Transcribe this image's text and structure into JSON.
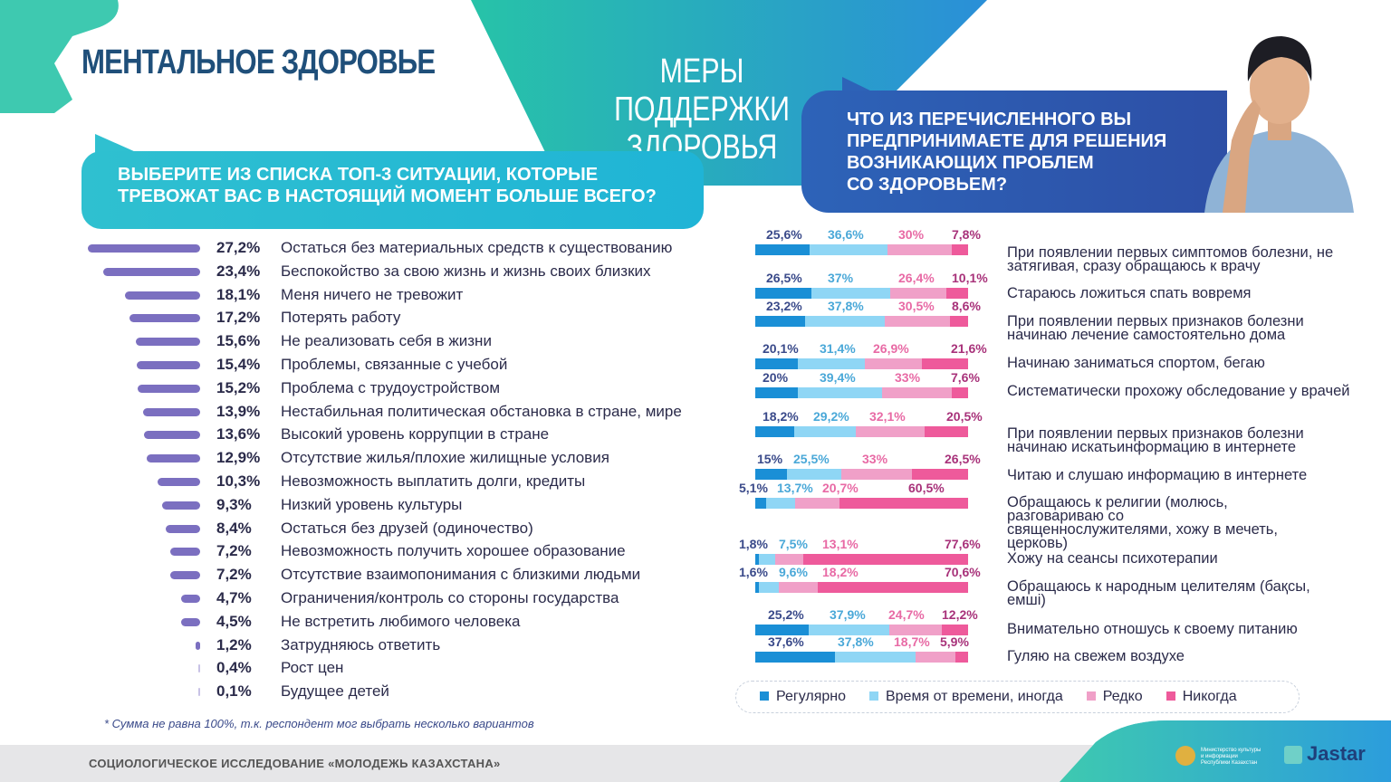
{
  "header": {
    "title": "МЕНТАЛЬНОЕ ЗДОРОВЬЕ",
    "subtitle_line1": "МЕРЫ ПОДДЕРЖКИ",
    "subtitle_line2": "ЗДОРОВЬЯ"
  },
  "colors": {
    "left_bar": "#7b6fc0",
    "regular": "#1a8fd6",
    "sometimes": "#8fd6f5",
    "rarely": "#f0a0c8",
    "never": "#ee5a9b"
  },
  "chart_data": [
    {
      "type": "bar",
      "orientation": "horizontal",
      "title": "ВЫБЕРИТЕ ИЗ СПИСКА ТОП-3 СИТУАЦИИ, КОТОРЫЕ ТРЕВОЖАТ ВАС В НАСТОЯЩИЙ МОМЕНТ БОЛЬШЕ ВСЕГО?",
      "categories": [
        "Остаться без материальных средств к существованию",
        "Беспокойство за свою жизнь и жизнь своих близких",
        "Меня ничего не тревожит",
        "Потерять работу",
        "Не реализовать себя в жизни",
        "Проблемы, связанные с учебой",
        "Проблема с трудоустройством",
        "Нестабильная политическая обстановка в стране, мире",
        "Высокий уровень коррупции в стране",
        "Отсутствие жилья/плохие жилищные условия",
        "Невозможность выплатить долги, кредиты",
        "Низкий уровень культуры",
        "Остаться без друзей (одиночество)",
        "Невозможность получить хорошее образование",
        "Отсутствие взаимопонимания с близкими людьми",
        "Ограничения/контроль со стороны государства",
        "Не встретить любимого человека",
        "Затрудняюсь ответить",
        "Рост цен",
        "Будущее детей"
      ],
      "values": [
        27.2,
        23.4,
        18.1,
        17.2,
        15.6,
        15.4,
        15.2,
        13.9,
        13.6,
        12.9,
        10.3,
        9.3,
        8.4,
        7.2,
        7.2,
        4.7,
        4.5,
        1.2,
        0.4,
        0.1
      ],
      "value_labels": [
        "27,2%",
        "23,4%",
        "18,1%",
        "17,2%",
        "15,6%",
        "15,4%",
        "15,2%",
        "13,9%",
        "13,6%",
        "12,9%",
        "10,3%",
        "9,3%",
        "8,4%",
        "7,2%",
        "7,2%",
        "4,7%",
        "4,5%",
        "1,2%",
        "0,4%",
        "0,1%"
      ],
      "note": "* Сумма не равна 100%, т.к. респондент  мог выбрать несколько вариантов"
    },
    {
      "type": "bar",
      "orientation": "horizontal",
      "stacked": true,
      "title": "ЧТО ИЗ ПЕРЕЧИСЛЕННОГО ВЫ ПРЕДПРИНИМАЕТЕ ДЛЯ РЕШЕНИЯ ВОЗНИКАЮЩИХ ПРОБЛЕМ СО ЗДОРОВЬЕМ?",
      "title_lines": [
        "ЧТО ИЗ ПЕРЕЧИСЛЕННОГО ВЫ",
        "ПРЕДПРИНИМАЕТЕ ДЛЯ РЕШЕНИЯ",
        "ВОЗНИКАЮЩИХ ПРОБЛЕМ",
        "СО ЗДОРОВЬЕМ?"
      ],
      "categories": [
        "При появлении первых симптомов болезни, не затягивая, сразу обращаюсь к врачу",
        "Стараюсь ложиться спать вовремя",
        "При появлении первых признаков болезни начинаю лечение самостоятельно дома",
        "Начинаю заниматься спортом, бегаю",
        "Систематически прохожу обследование у врачей",
        "При появлении первых признаков болезни начинаю искатьинформацию в интернете",
        "Читаю и слушаю информацию в интернете",
        "Обращаюсь к религии (молюсь, разговариваю со священнослужителями, хожу в мечеть, церковь)",
        "Хожу на сеансы психотерапии",
        "Обращаюсь к народным целителям (бақсы, емші)",
        "Внимательно отношусь к своему питанию",
        "Гуляю на свежем воздухе"
      ],
      "series": [
        {
          "name": "Регулярно",
          "values": [
            25.6,
            26.5,
            23.2,
            20.1,
            20,
            18.2,
            15,
            5.1,
            1.8,
            1.6,
            25.2,
            37.6
          ],
          "labels": [
            "25,6%",
            "26,5%",
            "23,2%",
            "20,1%",
            "20%",
            "18,2%",
            "15%",
            "5,1%",
            "1,8%",
            "1,6%",
            "25,2%",
            "37,6%"
          ]
        },
        {
          "name": "Время от времени, иногда",
          "values": [
            36.6,
            37,
            37.8,
            31.4,
            39.4,
            29.2,
            25.5,
            13.7,
            7.5,
            9.6,
            37.9,
            37.8
          ],
          "labels": [
            "36,6%",
            "37%",
            "37,8%",
            "31,4%",
            "39,4%",
            "29,2%",
            "25,5%",
            "13,7%",
            "7,5%",
            "9,6%",
            "37,9%",
            "37,8%"
          ]
        },
        {
          "name": "Редко",
          "values": [
            30,
            26.4,
            30.5,
            26.9,
            33,
            32.1,
            33,
            20.7,
            13.1,
            18.2,
            24.7,
            18.7
          ],
          "labels": [
            "30%",
            "26,4%",
            "30,5%",
            "26,9%",
            "33%",
            "32,1%",
            "33%",
            "20,7%",
            "13,1%",
            "18,2%",
            "24,7%",
            "18,7%"
          ]
        },
        {
          "name": "Никогда",
          "values": [
            7.8,
            10.1,
            8.6,
            21.6,
            7.6,
            20.5,
            26.5,
            60.5,
            77.6,
            70.6,
            12.2,
            5.9
          ],
          "labels": [
            "7,8%",
            "10,1%",
            "8,6%",
            "21,6%",
            "7,6%",
            "20,5%",
            "26,5%",
            "60,5%",
            "77,6%",
            "70,6%",
            "12,2%",
            "5,9%"
          ]
        }
      ],
      "legend": "bottom"
    }
  ],
  "footer": {
    "text": "СОЦИОЛОГИЧЕСКОЕ ИССЛЕДОВАНИЕ «МОЛОДЕЖЬ КАЗАХСТАНА»",
    "ministry": "Министерство культуры и информации Республики Казахстан",
    "brand": "Jastar"
  }
}
